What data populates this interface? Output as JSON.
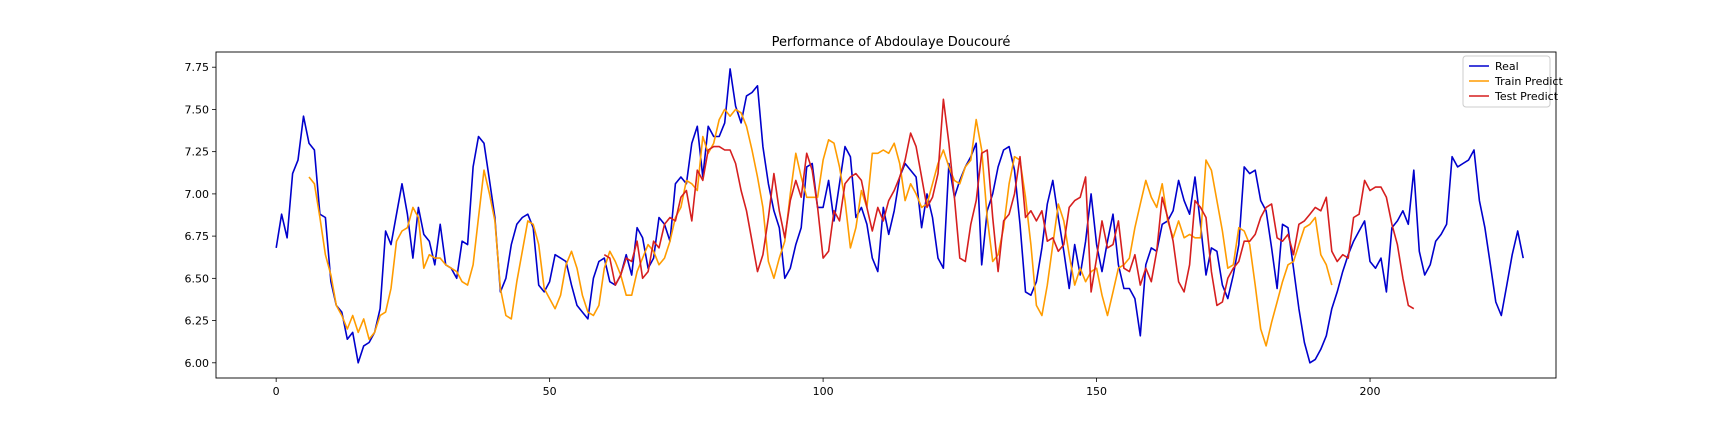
{
  "chart_data": {
    "type": "line",
    "title": "Performance of Abdoulaye Doucouré",
    "xlabel": "",
    "ylabel": "",
    "xlim": [
      -11,
      234
    ],
    "ylim": [
      5.91,
      7.84
    ],
    "x_ticks": [
      0,
      50,
      100,
      150,
      200
    ],
    "y_ticks": [
      6.0,
      6.25,
      6.5,
      6.75,
      7.0,
      7.25,
      7.5,
      7.75
    ],
    "grid": false,
    "legend_position": "upper right",
    "series": [
      {
        "name": "Real",
        "color": "#0000cd",
        "start_x": 0,
        "values": [
          6.68,
          6.88,
          6.74,
          7.12,
          7.2,
          7.46,
          7.3,
          7.26,
          6.88,
          6.86,
          6.48,
          6.34,
          6.3,
          6.14,
          6.18,
          6.0,
          6.1,
          6.12,
          6.18,
          6.32,
          6.78,
          6.7,
          6.88,
          7.06,
          6.88,
          6.62,
          6.92,
          6.76,
          6.72,
          6.58,
          6.82,
          6.58,
          6.56,
          6.5,
          6.72,
          6.7,
          7.16,
          7.34,
          7.3,
          7.08,
          6.86,
          6.42,
          6.5,
          6.7,
          6.82,
          6.86,
          6.88,
          6.8,
          6.46,
          6.42,
          6.48,
          6.64,
          6.62,
          6.6,
          6.46,
          6.34,
          6.3,
          6.26,
          6.5,
          6.6,
          6.62,
          6.48,
          6.46,
          6.52,
          6.64,
          6.52,
          6.8,
          6.74,
          6.56,
          6.62,
          6.86,
          6.82,
          6.72,
          7.06,
          7.1,
          7.06,
          7.3,
          7.4,
          7.1,
          7.4,
          7.34,
          7.34,
          7.42,
          7.74,
          7.52,
          7.42,
          7.58,
          7.6,
          7.64,
          7.28,
          7.06,
          6.9,
          6.8,
          6.5,
          6.56,
          6.7,
          6.8,
          7.16,
          7.18,
          6.92,
          6.92,
          7.08,
          6.84,
          7.06,
          7.28,
          7.22,
          6.86,
          6.92,
          6.82,
          6.62,
          6.54,
          6.92,
          6.76,
          6.9,
          7.1,
          7.18,
          7.14,
          7.1,
          6.8,
          7.0,
          6.86,
          6.62,
          6.56,
          7.18,
          6.98,
          7.08,
          7.16,
          7.22,
          7.3,
          6.58,
          6.9,
          7.0,
          7.16,
          7.26,
          7.28,
          7.14,
          6.82,
          6.42,
          6.4,
          6.48,
          6.68,
          6.94,
          7.08,
          6.86,
          6.66,
          6.44,
          6.7,
          6.52,
          6.72,
          7.0,
          6.7,
          6.54,
          6.72,
          6.88,
          6.58,
          6.44,
          6.44,
          6.38,
          6.16,
          6.58,
          6.68,
          6.66,
          6.82,
          6.84,
          6.9,
          7.08,
          6.96,
          6.88,
          7.1,
          6.82,
          6.52,
          6.68,
          6.66,
          6.46,
          6.38,
          6.52,
          6.7,
          7.16,
          7.12,
          7.14,
          6.96,
          6.9,
          6.68,
          6.44,
          6.82,
          6.8,
          6.56,
          6.32,
          6.12,
          6.0,
          6.02,
          6.08,
          6.16,
          6.32,
          6.42,
          6.54,
          6.64,
          6.72,
          6.78,
          6.84,
          6.6,
          6.56,
          6.62,
          6.42,
          6.8,
          6.84,
          6.9,
          6.82,
          7.14,
          6.66,
          6.52,
          6.58,
          6.72,
          6.76,
          6.82,
          7.22,
          7.16,
          7.18,
          7.2,
          7.26,
          6.96,
          6.8,
          6.58,
          6.36,
          6.28,
          6.46,
          6.64,
          6.78,
          6.62
        ]
      },
      {
        "name": "Train Predict",
        "color": "#ff9c00",
        "start_x": 6,
        "values": [
          7.1,
          7.06,
          6.86,
          6.64,
          6.52,
          6.34,
          6.28,
          6.2,
          6.28,
          6.18,
          6.26,
          6.14,
          6.18,
          6.28,
          6.3,
          6.44,
          6.72,
          6.78,
          6.8,
          6.92,
          6.86,
          6.56,
          6.64,
          6.62,
          6.62,
          6.58,
          6.56,
          6.54,
          6.48,
          6.46,
          6.58,
          6.86,
          7.14,
          7.0,
          6.84,
          6.44,
          6.28,
          6.26,
          6.48,
          6.66,
          6.84,
          6.82,
          6.7,
          6.44,
          6.38,
          6.32,
          6.4,
          6.58,
          6.66,
          6.56,
          6.4,
          6.3,
          6.28,
          6.34,
          6.56,
          6.66,
          6.6,
          6.52,
          6.4,
          6.4,
          6.54,
          6.62,
          6.7,
          6.66,
          6.58,
          6.62,
          6.72,
          6.86,
          6.92,
          7.08,
          7.06,
          7.02,
          7.34,
          7.24,
          7.3,
          7.44,
          7.5,
          7.46,
          7.5,
          7.48,
          7.4,
          7.26,
          7.1,
          6.92,
          6.6,
          6.5,
          6.62,
          6.72,
          7.0,
          7.24,
          7.1,
          6.98,
          6.98,
          6.98,
          7.2,
          7.32,
          7.3,
          7.16,
          6.96,
          6.68,
          6.8,
          7.02,
          6.92,
          7.24,
          7.24,
          7.26,
          7.24,
          7.3,
          7.18,
          6.96,
          7.06,
          7.0,
          6.92,
          6.94,
          7.06,
          7.18,
          7.26,
          7.16,
          7.08,
          7.06,
          7.16,
          7.2,
          7.44,
          7.26,
          6.86,
          6.6,
          6.64,
          6.8,
          7.06,
          7.22,
          7.2,
          6.98,
          6.7,
          6.34,
          6.28,
          6.46,
          6.7,
          6.94,
          6.84,
          6.64,
          6.46,
          6.56,
          6.48,
          6.54,
          6.56,
          6.4,
          6.28,
          6.42,
          6.56,
          6.58,
          6.62,
          6.8,
          6.94,
          7.08,
          6.98,
          6.92,
          7.06,
          6.84,
          6.74,
          6.84,
          6.74,
          6.76,
          6.74,
          6.74,
          7.2,
          7.14,
          6.96,
          6.78,
          6.56,
          6.58,
          6.8,
          6.78,
          6.7,
          6.46,
          6.2,
          6.1,
          6.24,
          6.36,
          6.48,
          6.58,
          6.6,
          6.7,
          6.8,
          6.82,
          6.86,
          6.64,
          6.58,
          6.46
        ]
      },
      {
        "name": "Test Predict",
        "color": "#d61f1f",
        "start_x": 60,
        "values": [
          6.64,
          6.62,
          6.46,
          6.52,
          6.62,
          6.6,
          6.72,
          6.5,
          6.54,
          6.72,
          6.68,
          6.82,
          6.86,
          6.84,
          6.98,
          7.02,
          6.84,
          7.14,
          7.08,
          7.26,
          7.28,
          7.28,
          7.26,
          7.26,
          7.18,
          7.02,
          6.9,
          6.72,
          6.54,
          6.64,
          6.86,
          7.12,
          6.9,
          6.74,
          6.96,
          7.08,
          6.98,
          7.24,
          7.14,
          6.92,
          6.62,
          6.66,
          6.9,
          6.84,
          7.06,
          7.1,
          7.12,
          7.08,
          6.92,
          6.78,
          6.92,
          6.84,
          6.96,
          7.02,
          7.1,
          7.2,
          7.36,
          7.28,
          7.1,
          6.92,
          6.98,
          7.12,
          7.56,
          7.3,
          6.98,
          6.62,
          6.6,
          6.82,
          6.96,
          7.24,
          7.26,
          6.86,
          6.54,
          6.84,
          6.88,
          7.0,
          7.22,
          6.86,
          6.9,
          6.84,
          6.9,
          6.72,
          6.74,
          6.66,
          6.7,
          6.92,
          6.96,
          6.98,
          7.1,
          6.42,
          6.62,
          6.84,
          6.68,
          6.7,
          6.84,
          6.56,
          6.54,
          6.64,
          6.46,
          6.56,
          6.48,
          6.66,
          6.98,
          6.86,
          6.72,
          6.48,
          6.42,
          6.58,
          6.96,
          6.92,
          6.86,
          6.54,
          6.34,
          6.36,
          6.5,
          6.56,
          6.6,
          6.72,
          6.72,
          6.76,
          6.86,
          6.92,
          6.94,
          6.74,
          6.72,
          6.76,
          6.64,
          6.82,
          6.84,
          6.88,
          6.92,
          6.9,
          6.98,
          6.66,
          6.6,
          6.64,
          6.62,
          6.86,
          6.88,
          7.08,
          7.02,
          7.04,
          7.04,
          6.98,
          6.82,
          6.7,
          6.5,
          6.34,
          6.32
        ]
      }
    ]
  }
}
